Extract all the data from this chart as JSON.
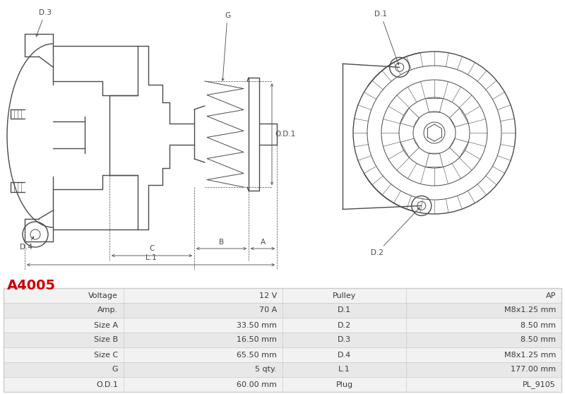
{
  "title": "A4005",
  "title_color": "#cc0000",
  "background_color": "#ffffff",
  "table_border_color": "#cccccc",
  "drawing_line_color": "#4a4a4a",
  "rows": [
    [
      "Voltage",
      "12 V",
      "Pulley",
      "AP"
    ],
    [
      "Amp.",
      "70 A",
      "D.1",
      "M8x1.25 mm"
    ],
    [
      "Size A",
      "33.50 mm",
      "D.2",
      "8.50 mm"
    ],
    [
      "Size B",
      "16.50 mm",
      "D.3",
      "8.50 mm"
    ],
    [
      "Size C",
      "65.50 mm",
      "D.4",
      "M8x1.25 mm"
    ],
    [
      "G",
      "5 qty.",
      "L.1",
      "177.00 mm"
    ],
    [
      "O.D.1",
      "60.00 mm",
      "Plug",
      "PL_9105"
    ]
  ]
}
